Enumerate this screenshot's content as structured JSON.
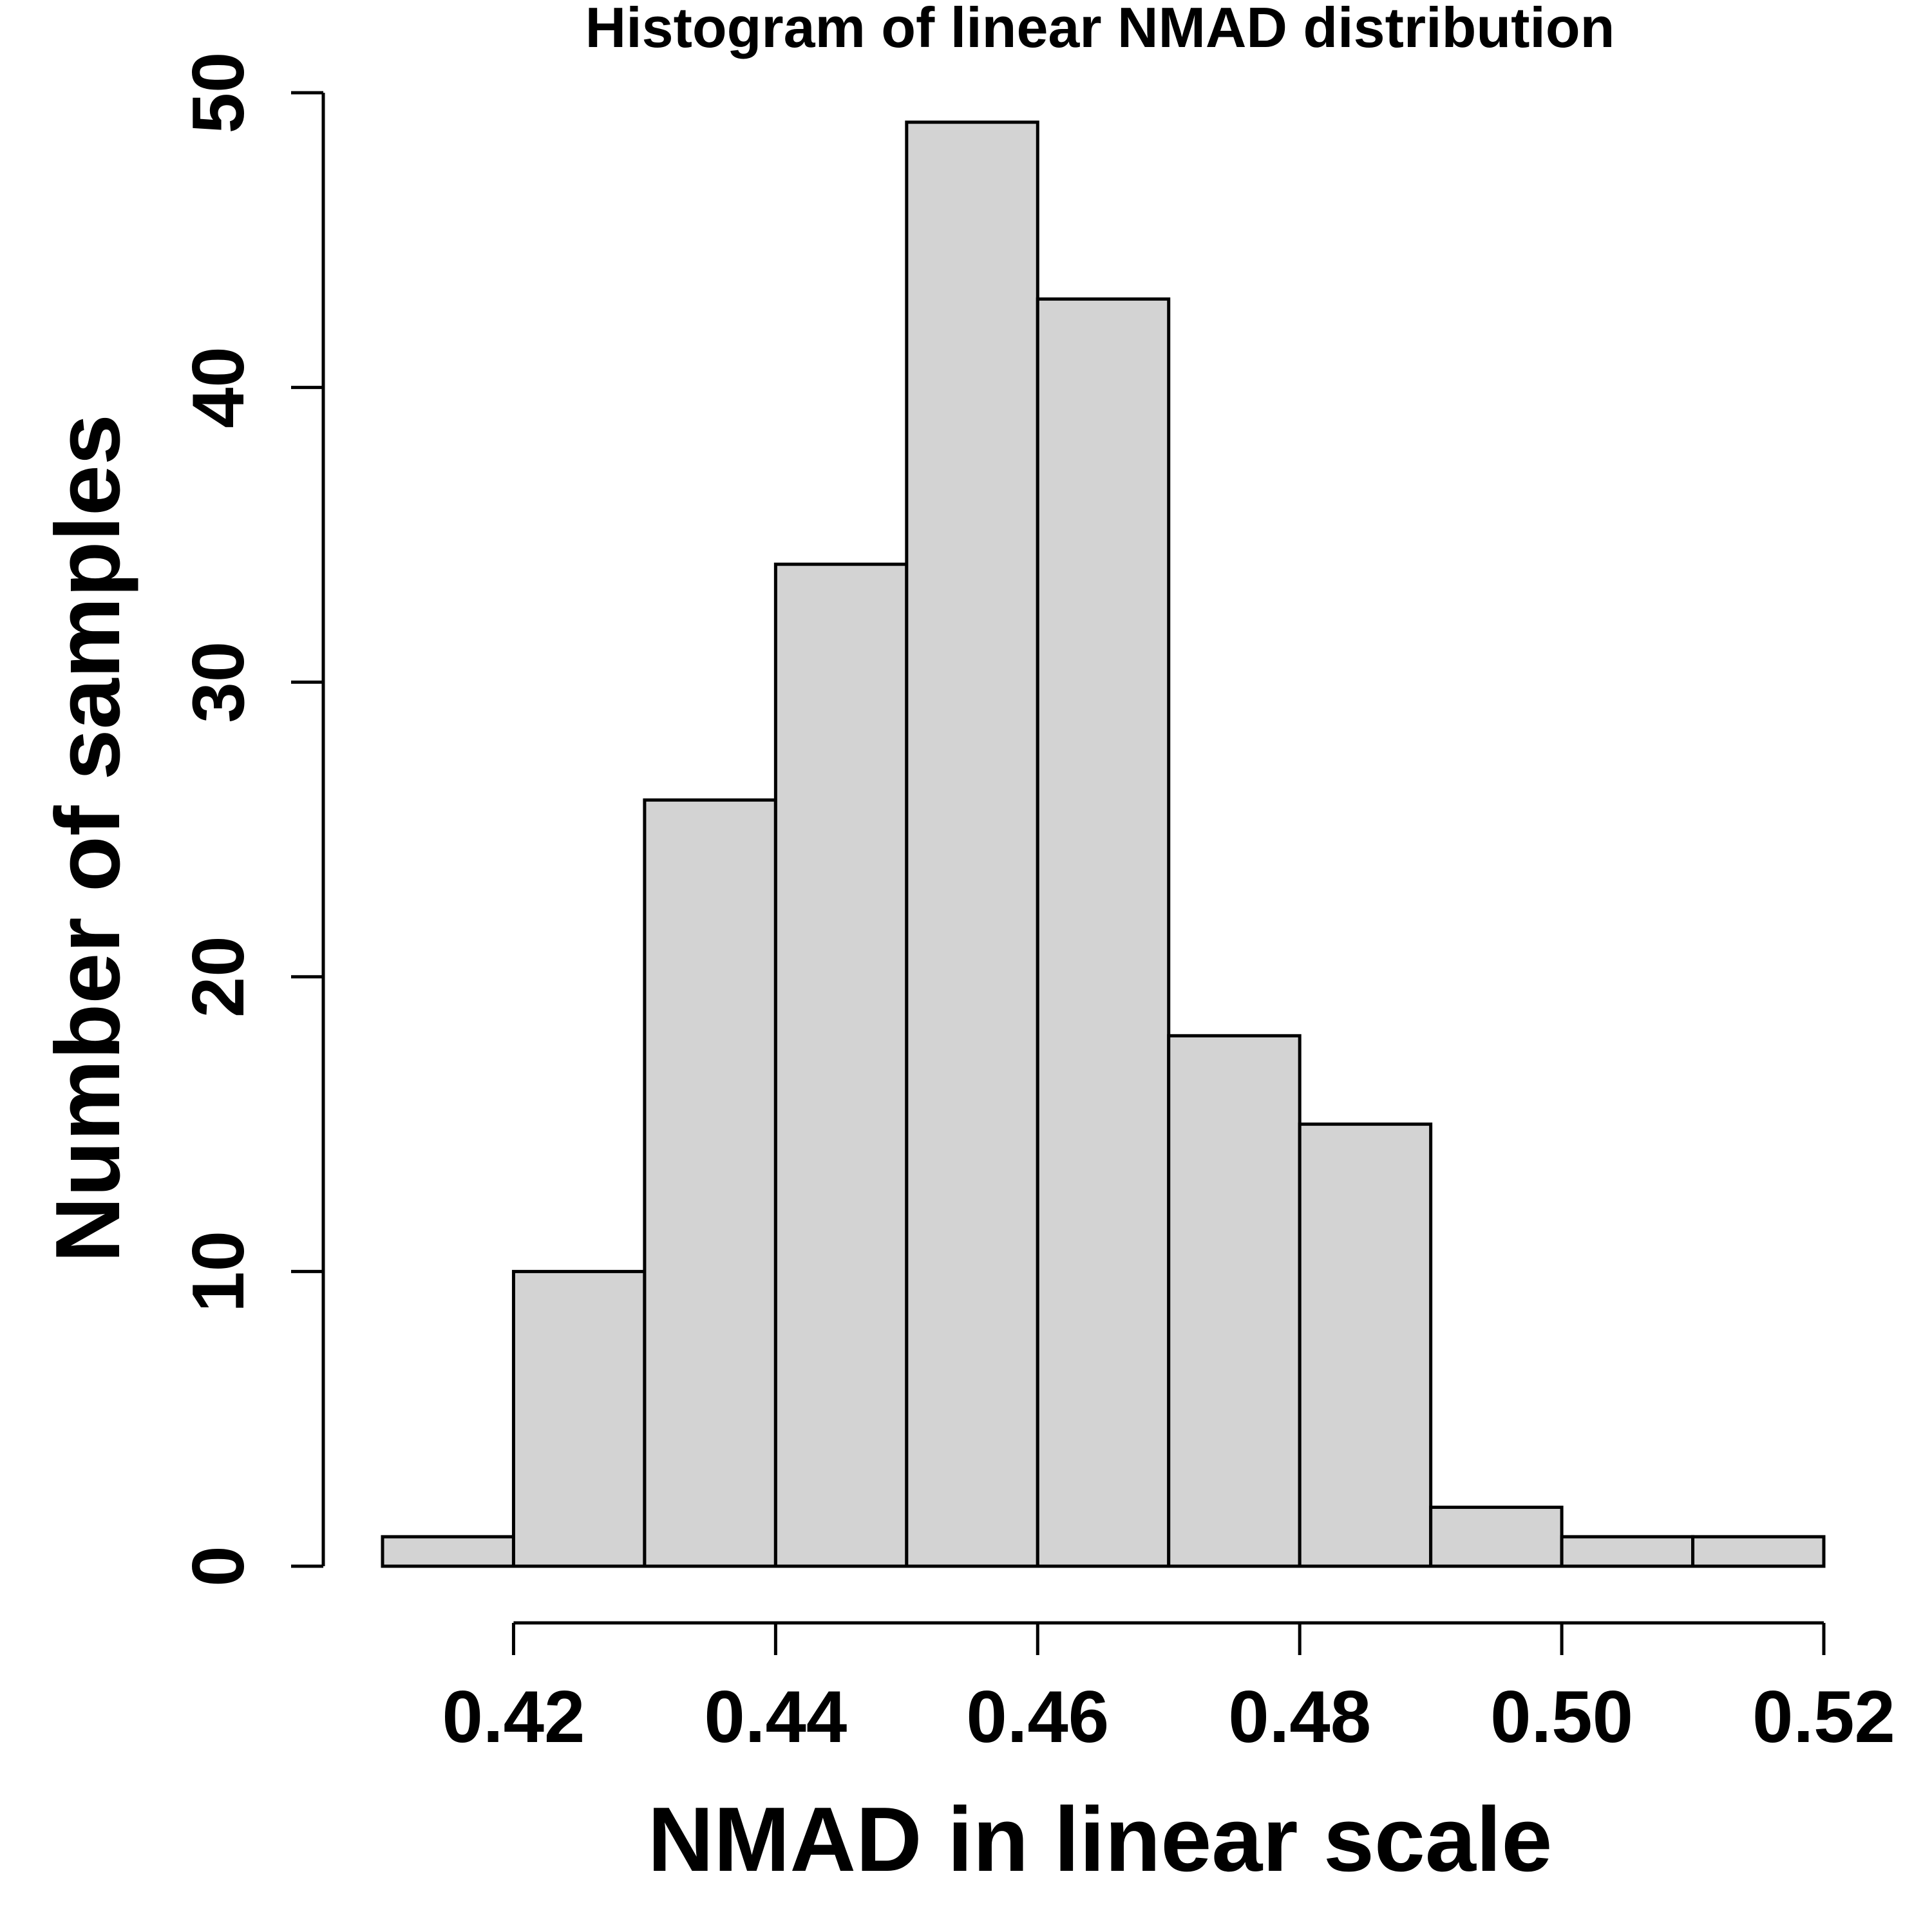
{
  "chart_data": {
    "type": "bar",
    "title": "Histogram of linear NMAD distribution",
    "xlabel": "NMAD in linear scale",
    "ylabel": "Number of samples",
    "bins": [
      {
        "x0": 0.41,
        "x1": 0.42,
        "count": 1
      },
      {
        "x0": 0.42,
        "x1": 0.43,
        "count": 10
      },
      {
        "x0": 0.43,
        "x1": 0.44,
        "count": 26
      },
      {
        "x0": 0.44,
        "x1": 0.45,
        "count": 34
      },
      {
        "x0": 0.45,
        "x1": 0.46,
        "count": 49
      },
      {
        "x0": 0.46,
        "x1": 0.47,
        "count": 43
      },
      {
        "x0": 0.47,
        "x1": 0.48,
        "count": 18
      },
      {
        "x0": 0.48,
        "x1": 0.49,
        "count": 15
      },
      {
        "x0": 0.49,
        "x1": 0.5,
        "count": 2
      },
      {
        "x0": 0.5,
        "x1": 0.51,
        "count": 1
      },
      {
        "x0": 0.51,
        "x1": 0.52,
        "count": 1
      }
    ],
    "xlim": [
      0.41,
      0.52
    ],
    "ylim": [
      0,
      50
    ],
    "xticks": [
      0.42,
      0.44,
      0.46,
      0.48,
      0.5,
      0.52
    ],
    "xtick_labels": [
      "0.42",
      "0.44",
      "0.46",
      "0.48",
      "0.50",
      "0.52"
    ],
    "yticks": [
      0,
      10,
      20,
      30,
      40,
      50
    ],
    "ytick_labels": [
      "0",
      "10",
      "20",
      "30",
      "40",
      "50"
    ],
    "bar_color": "#d3d3d3",
    "edge_color": "#000000",
    "grid": false,
    "legend": "none"
  }
}
